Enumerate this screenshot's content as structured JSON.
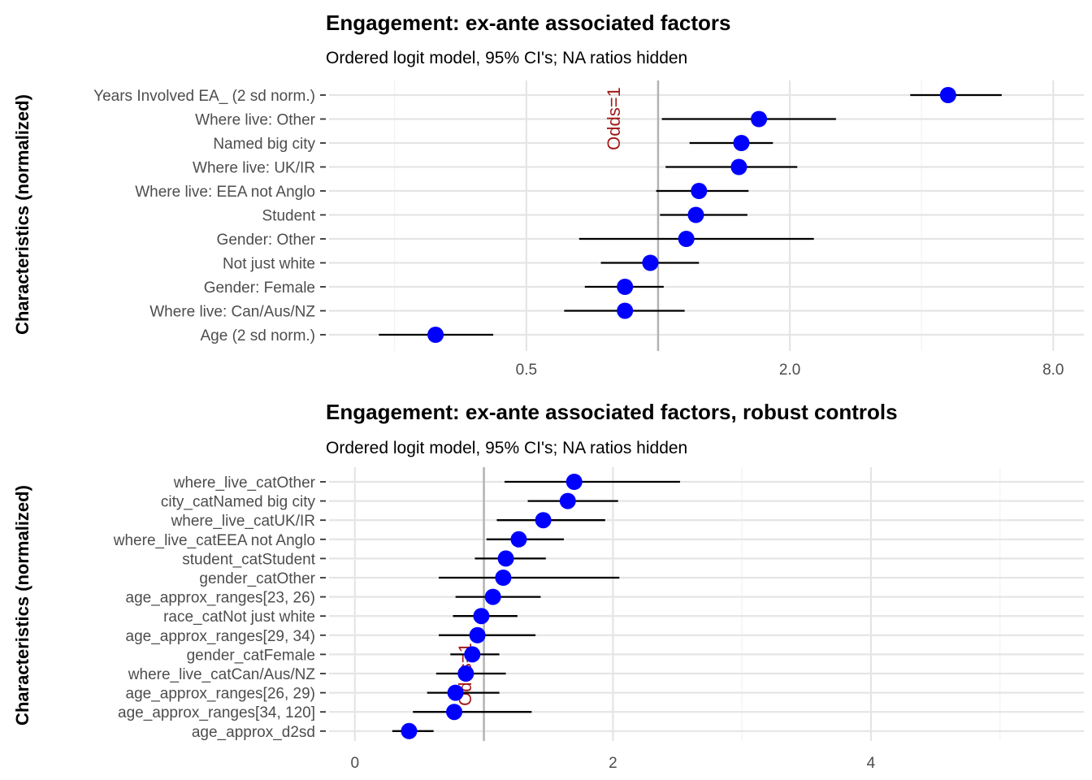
{
  "chart_data": [
    {
      "type": "scatter",
      "title": "Engagement: ex-ante associated factors",
      "subtitle": "Ordered logit model, 95% CI's; NA ratios hidden",
      "ylabel": "Characteristics (normalized)",
      "xlabel": "",
      "x_scale": "log2",
      "x_ticks": [
        "0.5",
        "2.0",
        "8.0"
      ],
      "x_tick_values": [
        0.5,
        2.0,
        8.0
      ],
      "xlim": [
        0.177,
        9.4
      ],
      "reference_label": "Odds=1",
      "reference_value": 1,
      "point_color": "#0000ff",
      "label_color": "#a01a1a",
      "categories": [
        "Years Involved EA_ (2 sd norm.)",
        "Where live: Other",
        "Named big city",
        "Where live: UK/IR",
        "Where live: EEA not Anglo",
        "Student",
        "Gender: Other",
        "Not just white",
        "Gender: Female",
        "Where live: Can/Aus/NZ",
        "Age (2 sd norm.)"
      ],
      "estimates": [
        4.6,
        1.7,
        1.55,
        1.53,
        1.24,
        1.22,
        1.16,
        0.96,
        0.84,
        0.84,
        0.31
      ],
      "lower": [
        3.77,
        1.02,
        1.18,
        1.04,
        0.99,
        1.01,
        0.66,
        0.74,
        0.68,
        0.61,
        0.23
      ],
      "upper": [
        6.1,
        2.55,
        1.83,
        2.08,
        1.61,
        1.6,
        2.27,
        1.24,
        1.03,
        1.15,
        0.42
      ]
    },
    {
      "type": "scatter",
      "title": "Engagement: ex-ante associated factors, robust controls",
      "subtitle": "Ordered logit model, 95% CI's; NA ratios hidden",
      "ylabel": "Characteristics (normalized)",
      "xlabel": "",
      "x_scale": "linear",
      "x_ticks": [
        "0",
        "2",
        "4"
      ],
      "x_tick_values": [
        0,
        2,
        4
      ],
      "xlim": [
        -0.2,
        5.65
      ],
      "reference_label": "Odds=1",
      "reference_value": 1,
      "point_color": "#0000ff",
      "label_color": "#a01a1a",
      "categories": [
        "where_live_catOther",
        "city_catNamed big city",
        "where_live_catUK/IR",
        "where_live_catEEA not Anglo",
        "student_catStudent",
        "gender_catOther",
        "age_approx_ranges[23, 26)",
        "race_catNot just white",
        "age_approx_ranges[29, 34)",
        "gender_catFemale",
        "where_live_catCan/Aus/NZ",
        "age_approx_ranges[26, 29)",
        "age_approx_ranges[34, 120]",
        "age_approx_d2sd"
      ],
      "estimates": [
        1.7,
        1.65,
        1.46,
        1.27,
        1.17,
        1.15,
        1.07,
        0.98,
        0.95,
        0.91,
        0.86,
        0.78,
        0.77,
        0.42
      ],
      "lower": [
        1.16,
        1.34,
        1.1,
        1.02,
        0.93,
        0.65,
        0.78,
        0.76,
        0.65,
        0.74,
        0.63,
        0.56,
        0.45,
        0.29
      ],
      "upper": [
        2.52,
        2.04,
        1.94,
        1.62,
        1.48,
        2.05,
        1.44,
        1.26,
        1.4,
        1.12,
        1.17,
        1.12,
        1.37,
        0.61
      ]
    }
  ]
}
